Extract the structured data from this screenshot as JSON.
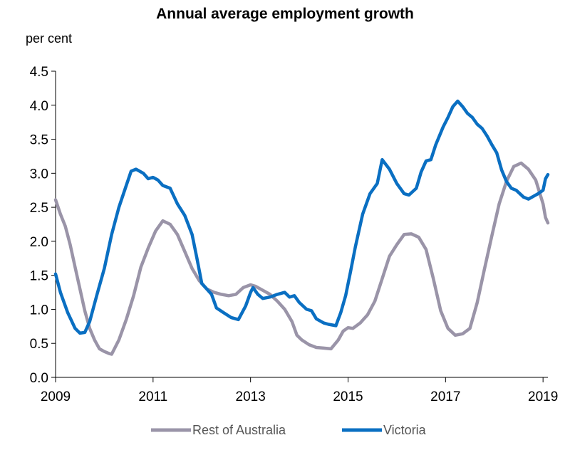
{
  "chart_data": {
    "type": "line",
    "title": "Annual average employment growth",
    "ylabel": "per cent",
    "xlabel": "",
    "xlim": [
      2009,
      2019.1
    ],
    "ylim": [
      0,
      4.5
    ],
    "yticks": [
      "0.0",
      "0.5",
      "1.0",
      "1.5",
      "2.0",
      "2.5",
      "3.0",
      "3.5",
      "4.0",
      "4.5"
    ],
    "xticks": [
      "2009",
      "2011",
      "2013",
      "2015",
      "2017",
      "2019"
    ],
    "grid": false,
    "legend_position": "bottom",
    "series": [
      {
        "name": "Rest of Australia",
        "color": "#9a94a8",
        "points": [
          [
            2009.0,
            2.61
          ],
          [
            2009.1,
            2.4
          ],
          [
            2009.2,
            2.22
          ],
          [
            2009.3,
            1.95
          ],
          [
            2009.4,
            1.62
          ],
          [
            2009.5,
            1.3
          ],
          [
            2009.6,
            0.98
          ],
          [
            2009.7,
            0.72
          ],
          [
            2009.8,
            0.55
          ],
          [
            2009.9,
            0.42
          ],
          [
            2010.0,
            0.38
          ],
          [
            2010.1,
            0.35
          ],
          [
            2010.15,
            0.34
          ],
          [
            2010.3,
            0.55
          ],
          [
            2010.45,
            0.85
          ],
          [
            2010.6,
            1.2
          ],
          [
            2010.75,
            1.62
          ],
          [
            2010.9,
            1.9
          ],
          [
            2011.05,
            2.15
          ],
          [
            2011.2,
            2.3
          ],
          [
            2011.35,
            2.25
          ],
          [
            2011.5,
            2.1
          ],
          [
            2011.65,
            1.85
          ],
          [
            2011.8,
            1.6
          ],
          [
            2011.95,
            1.42
          ],
          [
            2012.1,
            1.3
          ],
          [
            2012.25,
            1.25
          ],
          [
            2012.4,
            1.22
          ],
          [
            2012.55,
            1.2
          ],
          [
            2012.7,
            1.22
          ],
          [
            2012.85,
            1.32
          ],
          [
            2013.0,
            1.36
          ],
          [
            2013.1,
            1.34
          ],
          [
            2013.25,
            1.28
          ],
          [
            2013.4,
            1.22
          ],
          [
            2013.55,
            1.12
          ],
          [
            2013.7,
            1.0
          ],
          [
            2013.85,
            0.82
          ],
          [
            2013.95,
            0.62
          ],
          [
            2014.05,
            0.55
          ],
          [
            2014.2,
            0.48
          ],
          [
            2014.35,
            0.44
          ],
          [
            2014.5,
            0.43
          ],
          [
            2014.65,
            0.42
          ],
          [
            2014.8,
            0.55
          ],
          [
            2014.9,
            0.68
          ],
          [
            2015.0,
            0.73
          ],
          [
            2015.1,
            0.72
          ],
          [
            2015.25,
            0.8
          ],
          [
            2015.4,
            0.92
          ],
          [
            2015.55,
            1.12
          ],
          [
            2015.7,
            1.45
          ],
          [
            2015.85,
            1.78
          ],
          [
            2016.0,
            1.95
          ],
          [
            2016.15,
            2.1
          ],
          [
            2016.3,
            2.11
          ],
          [
            2016.45,
            2.06
          ],
          [
            2016.6,
            1.88
          ],
          [
            2016.75,
            1.45
          ],
          [
            2016.9,
            0.98
          ],
          [
            2017.05,
            0.72
          ],
          [
            2017.2,
            0.62
          ],
          [
            2017.35,
            0.64
          ],
          [
            2017.5,
            0.72
          ],
          [
            2017.65,
            1.1
          ],
          [
            2017.8,
            1.6
          ],
          [
            2017.95,
            2.08
          ],
          [
            2018.1,
            2.55
          ],
          [
            2018.25,
            2.88
          ],
          [
            2018.4,
            3.1
          ],
          [
            2018.55,
            3.15
          ],
          [
            2018.7,
            3.06
          ],
          [
            2018.85,
            2.9
          ],
          [
            2019.0,
            2.55
          ],
          [
            2019.05,
            2.35
          ],
          [
            2019.1,
            2.27
          ]
        ]
      },
      {
        "name": "Victoria",
        "color": "#0a6fc2",
        "points": [
          [
            2009.0,
            1.52
          ],
          [
            2009.1,
            1.25
          ],
          [
            2009.25,
            0.95
          ],
          [
            2009.4,
            0.72
          ],
          [
            2009.5,
            0.65
          ],
          [
            2009.6,
            0.66
          ],
          [
            2009.7,
            0.82
          ],
          [
            2009.85,
            1.22
          ],
          [
            2010.0,
            1.6
          ],
          [
            2010.15,
            2.1
          ],
          [
            2010.3,
            2.5
          ],
          [
            2010.45,
            2.82
          ],
          [
            2010.55,
            3.03
          ],
          [
            2010.65,
            3.06
          ],
          [
            2010.8,
            3.0
          ],
          [
            2010.9,
            2.92
          ],
          [
            2011.0,
            2.94
          ],
          [
            2011.1,
            2.9
          ],
          [
            2011.2,
            2.82
          ],
          [
            2011.35,
            2.78
          ],
          [
            2011.5,
            2.55
          ],
          [
            2011.65,
            2.38
          ],
          [
            2011.8,
            2.1
          ],
          [
            2011.9,
            1.75
          ],
          [
            2012.0,
            1.38
          ],
          [
            2012.1,
            1.3
          ],
          [
            2012.2,
            1.22
          ],
          [
            2012.3,
            1.02
          ],
          [
            2012.45,
            0.95
          ],
          [
            2012.6,
            0.88
          ],
          [
            2012.75,
            0.85
          ],
          [
            2012.9,
            1.05
          ],
          [
            2013.0,
            1.25
          ],
          [
            2013.05,
            1.32
          ],
          [
            2013.15,
            1.22
          ],
          [
            2013.25,
            1.16
          ],
          [
            2013.4,
            1.18
          ],
          [
            2013.55,
            1.22
          ],
          [
            2013.7,
            1.25
          ],
          [
            2013.8,
            1.18
          ],
          [
            2013.9,
            1.2
          ],
          [
            2014.0,
            1.1
          ],
          [
            2014.15,
            1.0
          ],
          [
            2014.25,
            0.98
          ],
          [
            2014.35,
            0.86
          ],
          [
            2014.5,
            0.8
          ],
          [
            2014.6,
            0.78
          ],
          [
            2014.75,
            0.76
          ],
          [
            2014.85,
            0.95
          ],
          [
            2014.95,
            1.2
          ],
          [
            2015.05,
            1.55
          ],
          [
            2015.15,
            1.92
          ],
          [
            2015.3,
            2.4
          ],
          [
            2015.45,
            2.7
          ],
          [
            2015.6,
            2.85
          ],
          [
            2015.7,
            3.2
          ],
          [
            2015.85,
            3.06
          ],
          [
            2016.0,
            2.85
          ],
          [
            2016.15,
            2.7
          ],
          [
            2016.25,
            2.68
          ],
          [
            2016.4,
            2.78
          ],
          [
            2016.5,
            3.02
          ],
          [
            2016.6,
            3.18
          ],
          [
            2016.7,
            3.2
          ],
          [
            2016.8,
            3.42
          ],
          [
            2016.95,
            3.68
          ],
          [
            2017.05,
            3.82
          ],
          [
            2017.15,
            3.98
          ],
          [
            2017.25,
            4.06
          ],
          [
            2017.35,
            3.98
          ],
          [
            2017.45,
            3.88
          ],
          [
            2017.55,
            3.82
          ],
          [
            2017.65,
            3.72
          ],
          [
            2017.75,
            3.66
          ],
          [
            2017.85,
            3.55
          ],
          [
            2017.95,
            3.42
          ],
          [
            2018.05,
            3.3
          ],
          [
            2018.15,
            3.05
          ],
          [
            2018.25,
            2.88
          ],
          [
            2018.35,
            2.78
          ],
          [
            2018.45,
            2.75
          ],
          [
            2018.6,
            2.65
          ],
          [
            2018.7,
            2.62
          ],
          [
            2018.8,
            2.66
          ],
          [
            2018.9,
            2.7
          ],
          [
            2019.0,
            2.75
          ],
          [
            2019.05,
            2.92
          ],
          [
            2019.1,
            2.98
          ]
        ]
      }
    ]
  }
}
